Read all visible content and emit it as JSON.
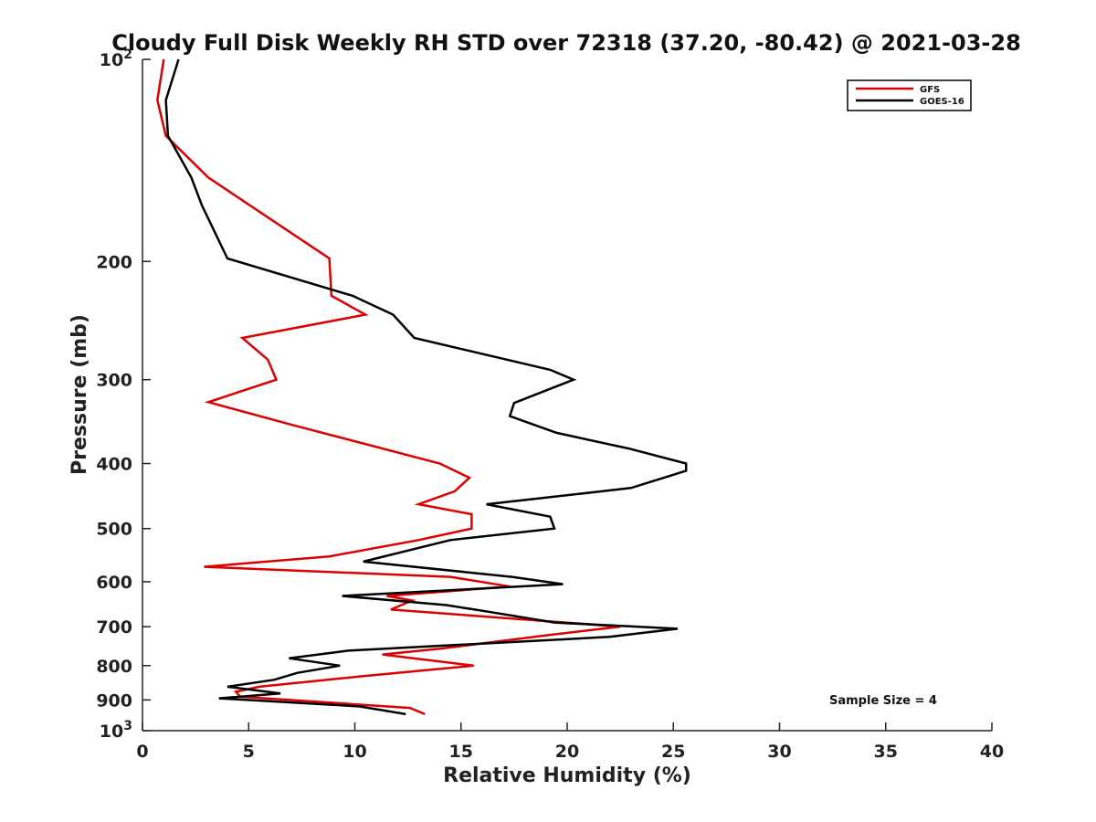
{
  "chart_data": {
    "type": "line",
    "title": "Cloudy Full Disk Weekly RH STD over 72318 (37.20, -80.42) @ 2021-03-28",
    "xlabel": "Relative Humidity (%)",
    "ylabel": "Pressure (mb)",
    "xlim": [
      0,
      40
    ],
    "ylim": [
      100,
      1000
    ],
    "yscale": "log",
    "y_reversed": true,
    "x_ticks": [
      0,
      5,
      10,
      15,
      20,
      25,
      30,
      35,
      40
    ],
    "y_ticks": [
      {
        "value": 100,
        "label": "10",
        "exp": "2"
      },
      {
        "value": 200,
        "label": "200"
      },
      {
        "value": 300,
        "label": "300"
      },
      {
        "value": 400,
        "label": "400"
      },
      {
        "value": 500,
        "label": "500"
      },
      {
        "value": 600,
        "label": "600"
      },
      {
        "value": 700,
        "label": "700"
      },
      {
        "value": 800,
        "label": "800"
      },
      {
        "value": 900,
        "label": "900"
      },
      {
        "value": 1000,
        "label": "10",
        "exp": "3"
      }
    ],
    "legend_position": "top-right",
    "annotation": "Sample Size = 4",
    "series": [
      {
        "name": "GFS",
        "color": "#dd0000",
        "points": [
          [
            1.0,
            100
          ],
          [
            0.7,
            115
          ],
          [
            1.1,
            130
          ],
          [
            3.1,
            150
          ],
          [
            8.8,
            198
          ],
          [
            8.9,
            225
          ],
          [
            10.5,
            240
          ],
          [
            4.7,
            260
          ],
          [
            5.9,
            280
          ],
          [
            6.3,
            300
          ],
          [
            3.1,
            324
          ],
          [
            7.0,
            350
          ],
          [
            14.0,
            400
          ],
          [
            15.4,
            420
          ],
          [
            14.7,
            440
          ],
          [
            13.0,
            460
          ],
          [
            15.5,
            476
          ],
          [
            15.5,
            500
          ],
          [
            13.0,
            520
          ],
          [
            8.8,
            550
          ],
          [
            2.9,
            570
          ],
          [
            14.5,
            590
          ],
          [
            17.3,
            610
          ],
          [
            11.5,
            630
          ],
          [
            12.7,
            640
          ],
          [
            11.7,
            660
          ],
          [
            22.5,
            700
          ],
          [
            19.2,
            720
          ],
          [
            14.0,
            755
          ],
          [
            11.3,
            770
          ],
          [
            15.6,
            800
          ],
          [
            10.3,
            830
          ],
          [
            5.5,
            860
          ],
          [
            4.4,
            875
          ],
          [
            4.6,
            890
          ],
          [
            12.6,
            925
          ],
          [
            13.3,
            945
          ]
        ]
      },
      {
        "name": "GOES-16",
        "color": "#000000",
        "points": [
          [
            1.7,
            100
          ],
          [
            1.1,
            115
          ],
          [
            1.2,
            130
          ],
          [
            2.3,
            150
          ],
          [
            2.8,
            165
          ],
          [
            4.0,
            198
          ],
          [
            9.9,
            225
          ],
          [
            11.8,
            240
          ],
          [
            12.8,
            260
          ],
          [
            19.2,
            290
          ],
          [
            20.3,
            300
          ],
          [
            17.5,
            325
          ],
          [
            17.3,
            340
          ],
          [
            19.5,
            360
          ],
          [
            22.9,
            380
          ],
          [
            25.6,
            400
          ],
          [
            25.6,
            410
          ],
          [
            23.0,
            435
          ],
          [
            16.2,
            460
          ],
          [
            19.2,
            480
          ],
          [
            19.4,
            500
          ],
          [
            14.5,
            520
          ],
          [
            10.4,
            560
          ],
          [
            17.4,
            590
          ],
          [
            19.8,
            605
          ],
          [
            9.4,
            630
          ],
          [
            14.3,
            650
          ],
          [
            16.3,
            665
          ],
          [
            19.4,
            690
          ],
          [
            25.2,
            705
          ],
          [
            22.0,
            725
          ],
          [
            9.7,
            760
          ],
          [
            6.9,
            780
          ],
          [
            9.3,
            800
          ],
          [
            7.3,
            820
          ],
          [
            6.2,
            840
          ],
          [
            4.0,
            860
          ],
          [
            6.5,
            880
          ],
          [
            3.6,
            895
          ],
          [
            10.2,
            920
          ],
          [
            12.4,
            945
          ]
        ]
      }
    ]
  }
}
